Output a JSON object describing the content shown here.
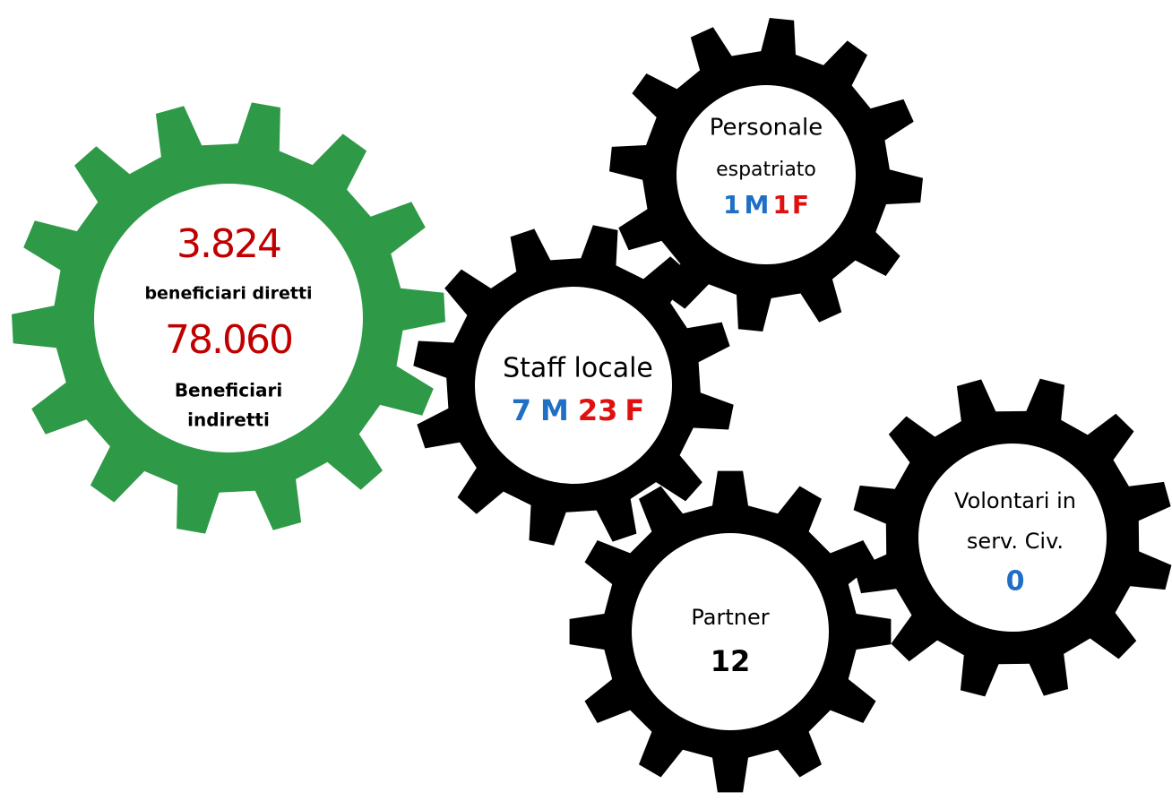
{
  "beneficiari": {
    "direct_value": "3.824",
    "direct_label": "beneficiari diretti",
    "indirect_value": "78.060",
    "indirect_label": [
      "Beneficiari",
      "indiretti"
    ]
  },
  "personale": {
    "label": [
      "Personale",
      "espatriato"
    ],
    "m": 1,
    "m_label": "M",
    "f": 1,
    "f_label": "F"
  },
  "staff": {
    "label": "Staff locale",
    "m": 7,
    "m_label": "M",
    "f": 23,
    "f_label": "F"
  },
  "partner": {
    "label": "Partner",
    "value": 12
  },
  "volontari": {
    "label": [
      "Volontari in",
      "serv. Civ."
    ],
    "value": 0
  }
}
